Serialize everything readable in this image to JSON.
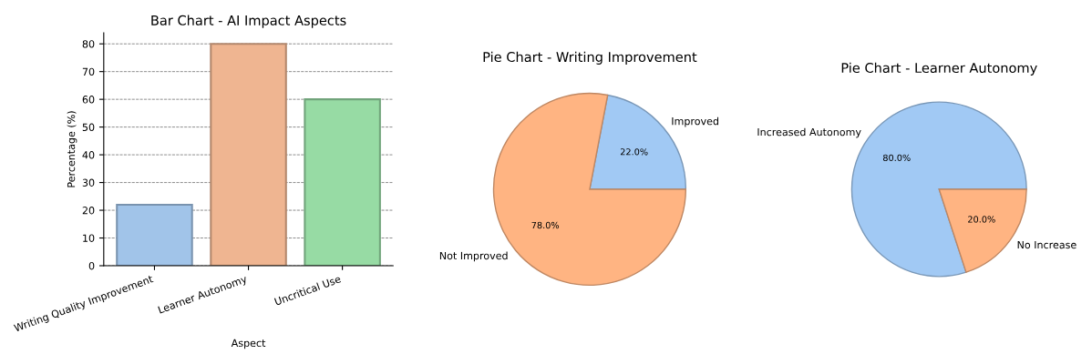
{
  "chart_data": [
    {
      "type": "bar",
      "title": "Bar Chart - AI Impact Aspects",
      "xlabel": "Aspect",
      "ylabel": "Percentage (%)",
      "categories": [
        "Writing Quality Improvement",
        "Learner Autonomy",
        "Uncritical Use"
      ],
      "values": [
        22,
        80,
        60
      ],
      "colors": [
        "#a1c4e9",
        "#efb591",
        "#97dba4"
      ],
      "ylim": [
        0,
        84
      ],
      "yticks": [
        0,
        10,
        20,
        30,
        40,
        50,
        60,
        70,
        80
      ],
      "grid": "y"
    },
    {
      "type": "pie",
      "title": "Pie Chart - Writing Improvement",
      "categories": [
        "Improved",
        "Not Improved"
      ],
      "values": [
        22,
        78
      ],
      "colors": [
        "#a1c9f4",
        "#ffb482"
      ],
      "value_labels": [
        "22.0%",
        "78.0%"
      ]
    },
    {
      "type": "pie",
      "title": "Pie Chart - Learner Autonomy",
      "categories": [
        "Increased Autonomy",
        "No Increase"
      ],
      "values": [
        80,
        20
      ],
      "colors": [
        "#a1c9f4",
        "#ffb482"
      ],
      "value_labels": [
        "80.0%",
        "20.0%"
      ]
    }
  ]
}
